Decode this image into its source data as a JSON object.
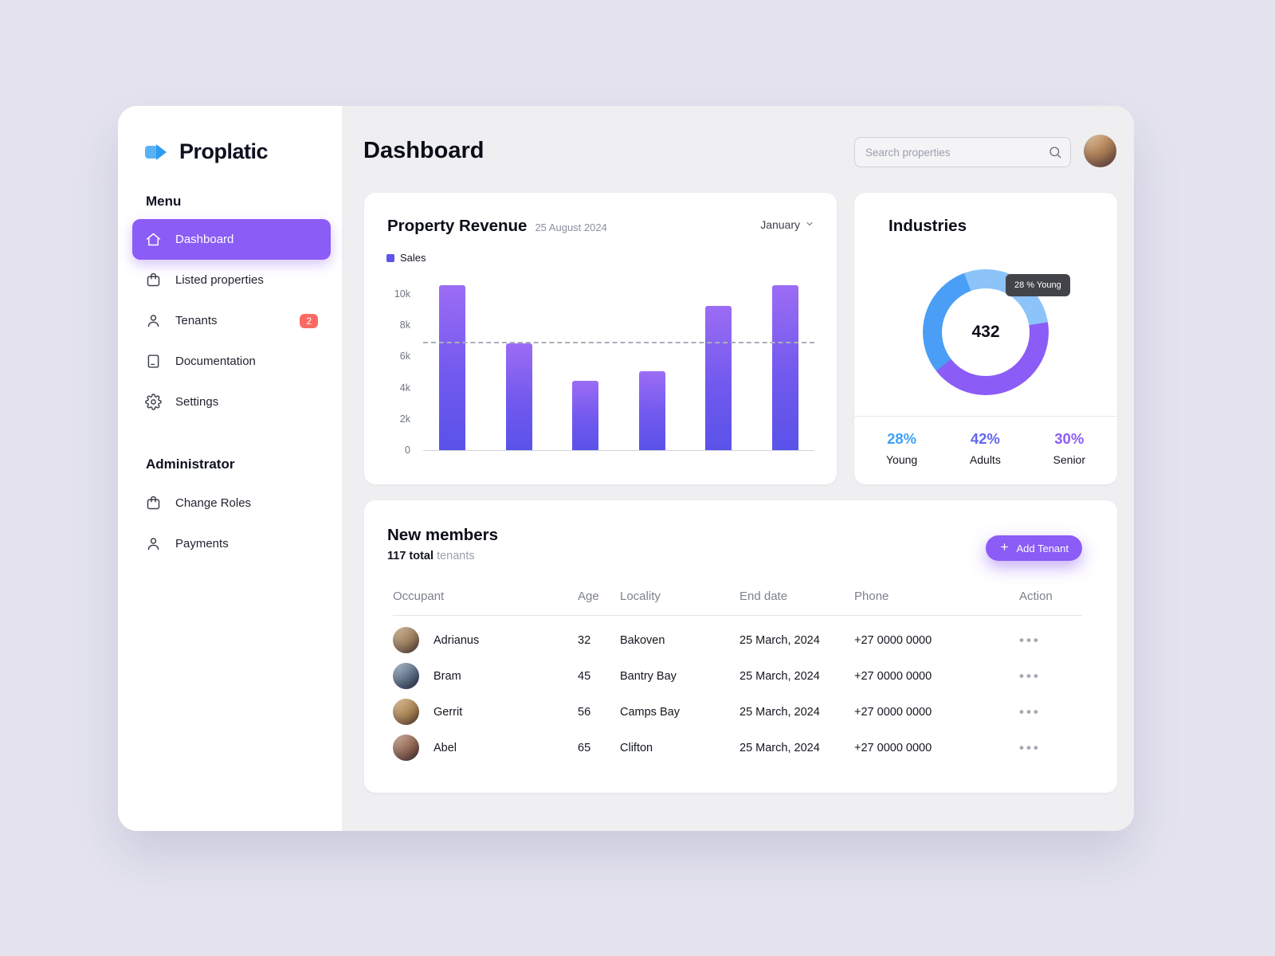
{
  "app": {
    "name": "Proplatic"
  },
  "sidebar": {
    "menu_label": "Menu",
    "items": [
      {
        "label": "Dashboard",
        "icon": "home-icon",
        "active": true
      },
      {
        "label": "Listed properties",
        "icon": "bag-icon"
      },
      {
        "label": "Tenants",
        "icon": "person-icon",
        "badge": "2"
      },
      {
        "label": "Documentation",
        "icon": "document-icon"
      },
      {
        "label": "Settings",
        "icon": "gear-icon"
      }
    ],
    "admin_label": "Administrator",
    "admin_items": [
      {
        "label": "Change Roles",
        "icon": "bag-icon"
      },
      {
        "label": "Payments",
        "icon": "person-icon"
      }
    ]
  },
  "header": {
    "title": "Dashboard",
    "search_placeholder": "Search properties"
  },
  "chart_data": [
    {
      "type": "bar",
      "title": "Property Revenue",
      "subtitle": "25 August 2024",
      "period_selector": "January",
      "legend": [
        "Sales"
      ],
      "values": [
        10500,
        6800,
        4400,
        5000,
        9200,
        10500
      ],
      "y_ticks": [
        "10k",
        "8k",
        "6k",
        "4k",
        "2k",
        "0"
      ],
      "axis_max": 10000,
      "dashed_reference_line": 6800,
      "bar_color_top": "#9C6CF4",
      "bar_color_bottom": "#5A52E9",
      "grid": false,
      "legend_position": "top-left"
    },
    {
      "type": "pie",
      "title": "Industries",
      "center_total": "432",
      "tooltip": "28 % Young",
      "segments": [
        {
          "label": "Young",
          "pct": 28,
          "donut_color": "#8CC3F9",
          "stat_color": "#3FA2F7"
        },
        {
          "label": "Adults",
          "pct": 42,
          "donut_color": "#8B5CF6",
          "stat_color": "#6366F1"
        },
        {
          "label": "Senior",
          "pct": 30,
          "donut_color": "#4A9EF5",
          "stat_color": "#8B5CF6"
        }
      ]
    }
  ],
  "members": {
    "title": "New members",
    "total_bold": "117 total",
    "total_muted": "tenants",
    "add_button_label": "Add Tenant",
    "columns": [
      "Occupant",
      "Age",
      "Locality",
      "End date",
      "Phone",
      "Action"
    ],
    "rows": [
      {
        "name": "Adrianus",
        "age": "32",
        "locality": "Bakoven",
        "end_date": "25 March, 2024",
        "phone": "+27 0000 0000"
      },
      {
        "name": "Bram",
        "age": "45",
        "locality": "Bantry Bay",
        "end_date": "25 March, 2024",
        "phone": "+27 0000 0000"
      },
      {
        "name": "Gerrit",
        "age": "56",
        "locality": "Camps Bay",
        "end_date": "25 March, 2024",
        "phone": "+27 0000 0000"
      },
      {
        "name": "Abel",
        "age": "65",
        "locality": "Clifton",
        "end_date": "25 March, 2024",
        "phone": "+27 0000 0000"
      }
    ]
  }
}
